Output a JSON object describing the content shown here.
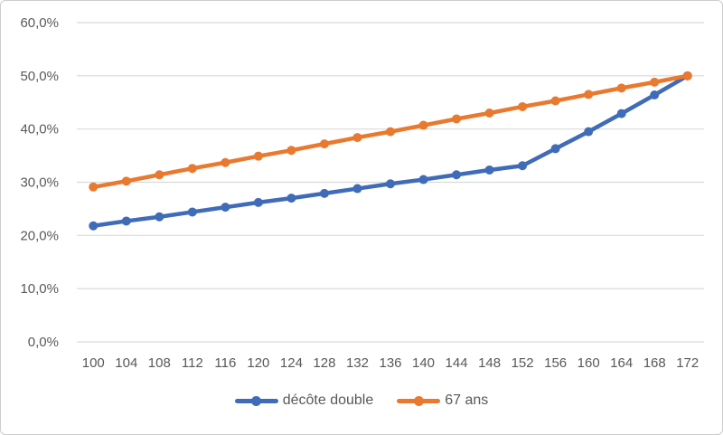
{
  "chart_data": {
    "type": "line",
    "title": "",
    "xlabel": "",
    "ylabel": "",
    "categories": [
      100,
      104,
      108,
      112,
      116,
      120,
      124,
      128,
      132,
      136,
      140,
      144,
      148,
      152,
      156,
      160,
      164,
      168,
      172
    ],
    "series": [
      {
        "name": "décôte double",
        "color": "#3F6BB8",
        "values": [
          21.8,
          22.7,
          23.5,
          24.4,
          25.3,
          26.2,
          27.0,
          27.9,
          28.8,
          29.7,
          30.5,
          31.4,
          32.3,
          33.1,
          36.3,
          39.5,
          42.9,
          46.4,
          50.0
        ]
      },
      {
        "name": "67 ans",
        "color": "#E8792F",
        "values": [
          29.1,
          30.2,
          31.4,
          32.6,
          33.7,
          34.9,
          36.0,
          37.2,
          38.4,
          39.5,
          40.7,
          41.9,
          43.0,
          44.2,
          45.3,
          46.5,
          47.7,
          48.8,
          50.0
        ]
      }
    ],
    "ylim": [
      0,
      60
    ],
    "y_tick_step": 10,
    "y_tick_labels": [
      "0,0%",
      "10,0%",
      "20,0%",
      "30,0%",
      "40,0%",
      "50,0%",
      "60,0%"
    ],
    "grid": true,
    "legend_position": "bottom",
    "axis_text_color": "#595959",
    "gridline_color": "#D9D9D9",
    "background_color": "#FFFFFF",
    "border_color": "#CCCCCC"
  }
}
